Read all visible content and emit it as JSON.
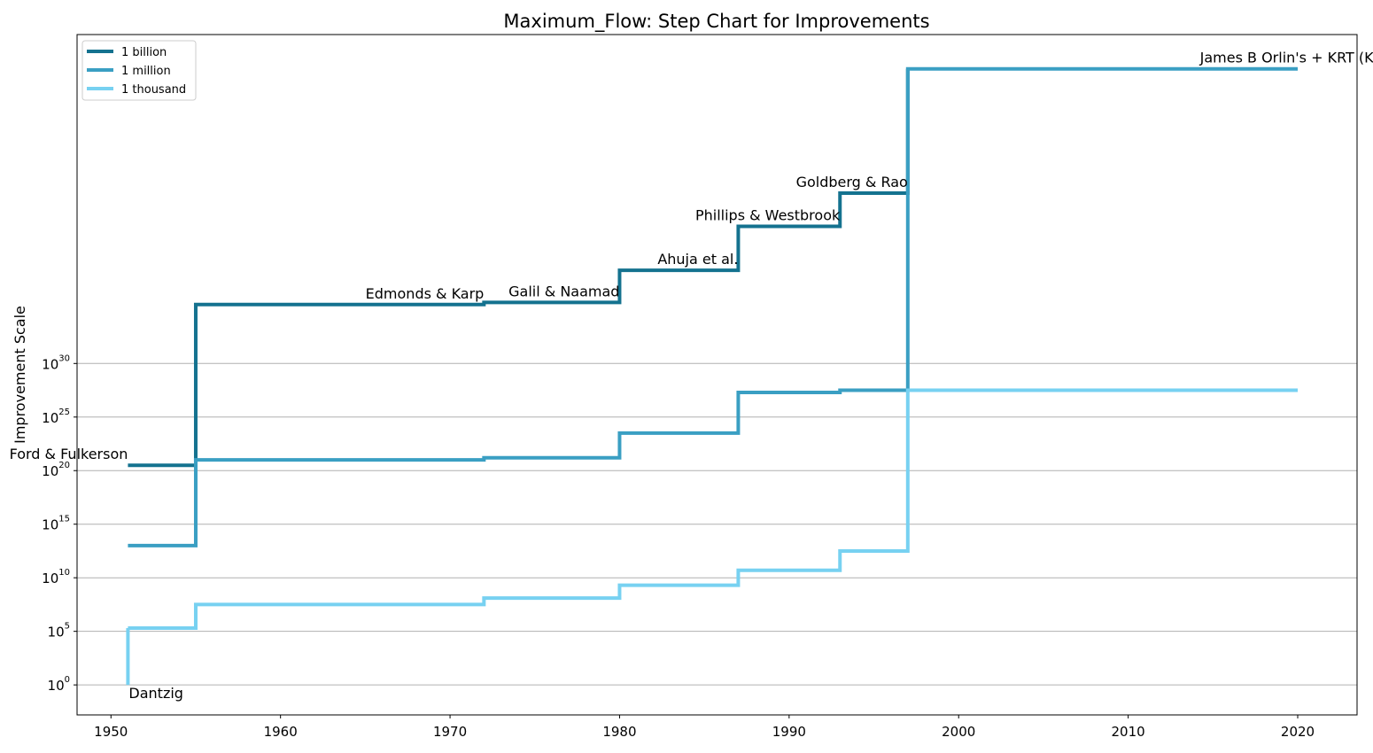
{
  "chart_data": {
    "type": "line",
    "step": "post",
    "title": "Maximum_Flow: Step Chart for Improvements",
    "xlabel": "",
    "ylabel": "Improvement Scale",
    "y_scale": "log10",
    "xlim": [
      1948,
      2023.5
    ],
    "ylim_exponent": [
      -2.8,
      60.7
    ],
    "x_ticks": [
      1950,
      1960,
      1970,
      1980,
      1990,
      2000,
      2010,
      2020
    ],
    "y_ticks": [
      {
        "base": "10",
        "exp": "0",
        "value": 0
      },
      {
        "base": "10",
        "exp": "5",
        "value": 5
      },
      {
        "base": "10",
        "exp": "10",
        "value": 10
      },
      {
        "base": "10",
        "exp": "15",
        "value": 15
      },
      {
        "base": "10",
        "exp": "20",
        "value": 20
      },
      {
        "base": "10",
        "exp": "25",
        "value": 25
      },
      {
        "base": "10",
        "exp": "30",
        "value": 30
      }
    ],
    "grid": "y",
    "legend_position": "upper left",
    "series": [
      {
        "name": "1 billion",
        "color": "#14728f",
        "x": [
          1951,
          1955,
          1972,
          1980,
          1987,
          1993,
          1997
        ],
        "log10_y": [
          20.5,
          35.5,
          35.7,
          38.7,
          42.8,
          45.9,
          57.5
        ]
      },
      {
        "name": "1 million",
        "color": "#3a9fc3",
        "x": [
          1951,
          1955,
          1972,
          1980,
          1987,
          1993,
          1997,
          2020
        ],
        "log10_y": [
          13.0,
          21.0,
          21.2,
          23.5,
          27.3,
          27.5,
          57.5,
          57.5
        ]
      },
      {
        "name": "1 thousand",
        "color": "#77d1f1",
        "x": [
          1951,
          1955,
          1972,
          1980,
          1987,
          1993,
          1997,
          2020
        ],
        "log10_y": [
          5.3,
          7.5,
          8.1,
          9.3,
          10.7,
          12.5,
          27.5,
          27.5
        ]
      },
      {
        "name": "",
        "color": "#77d1f1",
        "x": [
          1951,
          1951
        ],
        "log10_y": [
          0,
          5.3
        ]
      }
    ],
    "annotations": [
      {
        "text": "Dantzig",
        "x": 1951,
        "log10_y": 0
      },
      {
        "text": "Ford & Fulkerson",
        "x": 1951,
        "log10_y": 20.5
      },
      {
        "text": "Edmonds & Karp",
        "x": 1972,
        "log10_y": 35.5
      },
      {
        "text": "Galil & Naamad",
        "x": 1980,
        "log10_y": 35.7
      },
      {
        "text": "Ahuja et al.",
        "x": 1987,
        "log10_y": 38.7
      },
      {
        "text": "Phillips & Westbrook",
        "x": 1993,
        "log10_y": 42.8
      },
      {
        "text": "Goldberg & Rao",
        "x": 1997,
        "log10_y": 45.9
      },
      {
        "text": "James B Orlin's + KRT (King",
        "x": 2020,
        "log10_y": 57.5
      }
    ]
  }
}
